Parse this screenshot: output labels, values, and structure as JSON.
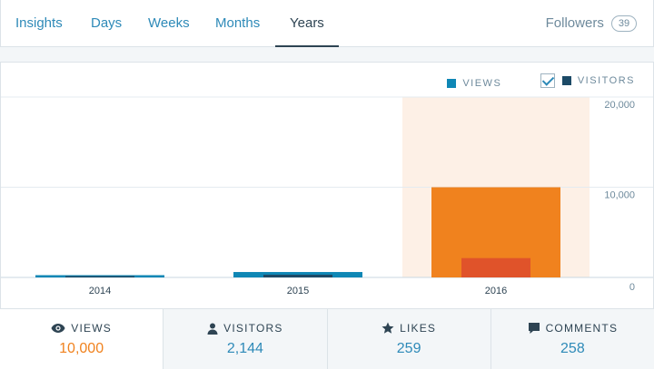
{
  "nav": {
    "tabs": [
      {
        "label": "Insights"
      },
      {
        "label": "Days"
      },
      {
        "label": "Weeks"
      },
      {
        "label": "Months"
      },
      {
        "label": "Years",
        "active": true
      }
    ],
    "followers_label": "Followers",
    "followers_count": "39"
  },
  "legend": {
    "views_label": "VIEWS",
    "visitors_label": "VISITORS",
    "views_color": "#0f87b5",
    "visitors_color": "#1c4a66",
    "visitors_checked": true
  },
  "chart_data": {
    "type": "bar",
    "categories": [
      "2014",
      "2015",
      "2016"
    ],
    "series": [
      {
        "name": "VIEWS",
        "values": [
          250,
          600,
          10000
        ]
      },
      {
        "name": "VISITORS",
        "values": [
          120,
          300,
          2144
        ]
      }
    ],
    "selected_category": "2016",
    "y_ticks": [
      "20,000",
      "10,000",
      "0"
    ],
    "ylim": [
      0,
      20000
    ],
    "colors": {
      "views": "#0f87b5",
      "visitors": "#1c4a66",
      "views_selected": "#f0821e",
      "visitors_selected": "#e0532a",
      "selected_band": "#fdf0e6"
    }
  },
  "stats": [
    {
      "label": "VIEWS",
      "value": "10,000",
      "icon": "eye-icon",
      "active": true
    },
    {
      "label": "VISITORS",
      "value": "2,144",
      "icon": "person-icon"
    },
    {
      "label": "LIKES",
      "value": "259",
      "icon": "star-icon"
    },
    {
      "label": "COMMENTS",
      "value": "258",
      "icon": "comment-bubble-icon"
    }
  ]
}
